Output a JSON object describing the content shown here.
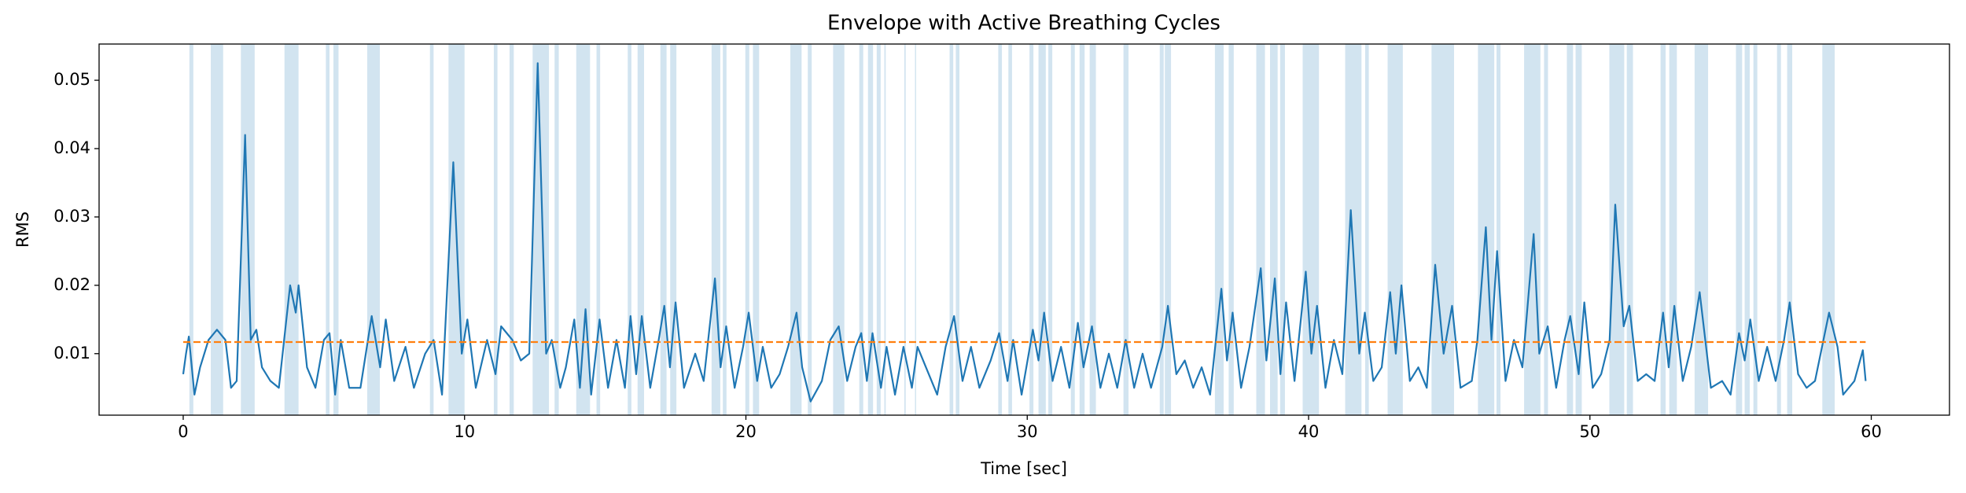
{
  "chart_data": {
    "type": "line",
    "title": "Envelope with Active Breathing Cycles",
    "x_label": "Time [sec]",
    "y_label": "RMS",
    "xlim": [
      -2.99,
      62.78
    ],
    "ylim": [
      0.001,
      0.0553
    ],
    "xticks": [
      0,
      10,
      20,
      30,
      40,
      50,
      60
    ],
    "yticks": [
      0.01,
      0.02,
      0.03,
      0.04,
      0.05
    ],
    "threshold": 0.0117,
    "threshold_color": "#ff7f0e",
    "span_color": "#1f77b4",
    "span_alpha": 0.2,
    "spans": [
      [
        0.22,
        0.36
      ],
      [
        0.98,
        1.42
      ],
      [
        2.05,
        2.54
      ],
      [
        3.6,
        4.1
      ],
      [
        5.07,
        5.2
      ],
      [
        5.34,
        5.52
      ],
      [
        6.54,
        6.99
      ],
      [
        8.77,
        8.9
      ],
      [
        9.43,
        10.0
      ],
      [
        11.04,
        11.17
      ],
      [
        11.6,
        11.75
      ],
      [
        12.42,
        13.0
      ],
      [
        13.2,
        13.35
      ],
      [
        13.97,
        14.46
      ],
      [
        14.69,
        14.82
      ],
      [
        15.8,
        15.93
      ],
      [
        16.15,
        16.38
      ],
      [
        16.96,
        17.18
      ],
      [
        17.31,
        17.53
      ],
      [
        18.78,
        19.09
      ],
      [
        19.18,
        19.31
      ],
      [
        19.98,
        20.12
      ],
      [
        20.25,
        20.47
      ],
      [
        21.58,
        21.98
      ],
      [
        22.2,
        22.34
      ],
      [
        23.1,
        23.5
      ],
      [
        24.03,
        24.17
      ],
      [
        24.34,
        24.52
      ],
      [
        24.65,
        24.79
      ],
      [
        24.92,
        24.97
      ],
      [
        25.63,
        25.68
      ],
      [
        26.01,
        26.05
      ],
      [
        27.24,
        27.37
      ],
      [
        27.46,
        27.59
      ],
      [
        28.97,
        29.1
      ],
      [
        29.33,
        29.46
      ],
      [
        30.08,
        30.22
      ],
      [
        30.4,
        30.66
      ],
      [
        30.75,
        30.89
      ],
      [
        31.55,
        31.69
      ],
      [
        31.86,
        32.04
      ],
      [
        32.22,
        32.44
      ],
      [
        33.42,
        33.6
      ],
      [
        34.71,
        34.85
      ],
      [
        34.89,
        35.11
      ],
      [
        36.67,
        36.98
      ],
      [
        37.16,
        37.34
      ],
      [
        38.14,
        38.45
      ],
      [
        38.63,
        38.9
      ],
      [
        38.99,
        39.16
      ],
      [
        39.79,
        40.37
      ],
      [
        41.3,
        41.88
      ],
      [
        42.01,
        42.14
      ],
      [
        42.81,
        43.35
      ],
      [
        44.37,
        45.17
      ],
      [
        46.02,
        46.6
      ],
      [
        46.68,
        46.82
      ],
      [
        47.66,
        48.24
      ],
      [
        48.37,
        48.51
      ],
      [
        49.18,
        49.4
      ],
      [
        49.49,
        49.71
      ],
      [
        50.69,
        51.22
      ],
      [
        51.31,
        51.53
      ],
      [
        52.51,
        52.69
      ],
      [
        52.82,
        53.09
      ],
      [
        53.72,
        54.2
      ],
      [
        55.19,
        55.41
      ],
      [
        55.5,
        55.68
      ],
      [
        55.81,
        55.95
      ],
      [
        56.65,
        56.79
      ],
      [
        57.01,
        57.19
      ],
      [
        58.26,
        58.7
      ]
    ],
    "x": [
      0.0,
      0.1,
      0.2,
      0.4,
      0.6,
      0.9,
      1.2,
      1.5,
      1.7,
      1.9,
      2.2,
      2.4,
      2.6,
      2.8,
      3.1,
      3.4,
      3.8,
      4.0,
      4.1,
      4.4,
      4.7,
      5.0,
      5.2,
      5.4,
      5.6,
      5.9,
      6.3,
      6.7,
      7.0,
      7.2,
      7.5,
      7.9,
      8.2,
      8.6,
      8.9,
      9.2,
      9.6,
      9.9,
      10.1,
      10.4,
      10.8,
      11.1,
      11.3,
      11.7,
      12.0,
      12.3,
      12.6,
      12.9,
      13.1,
      13.4,
      13.6,
      13.9,
      14.1,
      14.3,
      14.5,
      14.8,
      15.1,
      15.4,
      15.7,
      15.9,
      16.1,
      16.3,
      16.6,
      16.9,
      17.1,
      17.3,
      17.5,
      17.8,
      18.2,
      18.5,
      18.9,
      19.1,
      19.3,
      19.6,
      19.9,
      20.1,
      20.4,
      20.6,
      20.9,
      21.2,
      21.5,
      21.8,
      22.0,
      22.3,
      22.7,
      23.0,
      23.3,
      23.6,
      23.9,
      24.1,
      24.3,
      24.5,
      24.8,
      25.0,
      25.3,
      25.6,
      25.9,
      26.1,
      26.5,
      26.8,
      27.1,
      27.4,
      27.7,
      28.0,
      28.3,
      28.7,
      29.0,
      29.3,
      29.5,
      29.8,
      30.2,
      30.4,
      30.6,
      30.9,
      31.2,
      31.5,
      31.8,
      32.0,
      32.3,
      32.6,
      32.9,
      33.2,
      33.5,
      33.8,
      34.1,
      34.4,
      34.8,
      35.0,
      35.3,
      35.6,
      35.9,
      36.2,
      36.5,
      36.9,
      37.1,
      37.3,
      37.6,
      37.9,
      38.3,
      38.5,
      38.8,
      39.0,
      39.2,
      39.5,
      39.9,
      40.1,
      40.3,
      40.6,
      40.9,
      41.2,
      41.5,
      41.8,
      42.0,
      42.3,
      42.6,
      42.9,
      43.1,
      43.3,
      43.6,
      43.9,
      44.2,
      44.5,
      44.8,
      45.1,
      45.4,
      45.8,
      46.0,
      46.3,
      46.5,
      46.7,
      47.0,
      47.3,
      47.6,
      48.0,
      48.2,
      48.5,
      48.8,
      49.1,
      49.3,
      49.6,
      49.8,
      50.1,
      50.4,
      50.7,
      50.9,
      51.2,
      51.4,
      51.7,
      52.0,
      52.3,
      52.6,
      52.8,
      53.0,
      53.3,
      53.6,
      53.9,
      54.1,
      54.3,
      54.7,
      55.0,
      55.3,
      55.5,
      55.7,
      56.0,
      56.3,
      56.6,
      56.9,
      57.1,
      57.4,
      57.7,
      58.0,
      58.3,
      58.5,
      58.8,
      59.0,
      59.4,
      59.7,
      59.8
    ],
    "series": [
      {
        "color": "#1f77b4",
        "values": [
          0.007,
          0.01,
          0.0125,
          0.004,
          0.008,
          0.012,
          0.0135,
          0.012,
          0.005,
          0.006,
          0.042,
          0.012,
          0.0135,
          0.008,
          0.006,
          0.005,
          0.02,
          0.016,
          0.02,
          0.008,
          0.005,
          0.012,
          0.013,
          0.004,
          0.012,
          0.005,
          0.005,
          0.0155,
          0.008,
          0.015,
          0.006,
          0.011,
          0.005,
          0.01,
          0.012,
          0.004,
          0.038,
          0.01,
          0.015,
          0.005,
          0.012,
          0.007,
          0.014,
          0.012,
          0.009,
          0.01,
          0.0525,
          0.01,
          0.012,
          0.005,
          0.008,
          0.015,
          0.005,
          0.0165,
          0.004,
          0.015,
          0.005,
          0.012,
          0.005,
          0.0155,
          0.007,
          0.0155,
          0.005,
          0.012,
          0.017,
          0.008,
          0.0175,
          0.005,
          0.01,
          0.006,
          0.021,
          0.008,
          0.014,
          0.005,
          0.011,
          0.016,
          0.006,
          0.011,
          0.005,
          0.007,
          0.011,
          0.016,
          0.008,
          0.003,
          0.006,
          0.012,
          0.014,
          0.006,
          0.011,
          0.013,
          0.006,
          0.013,
          0.005,
          0.011,
          0.004,
          0.011,
          0.005,
          0.011,
          0.007,
          0.004,
          0.011,
          0.0155,
          0.006,
          0.011,
          0.005,
          0.009,
          0.013,
          0.006,
          0.012,
          0.004,
          0.0135,
          0.009,
          0.016,
          0.006,
          0.011,
          0.005,
          0.0145,
          0.008,
          0.014,
          0.005,
          0.01,
          0.005,
          0.012,
          0.005,
          0.01,
          0.005,
          0.011,
          0.017,
          0.007,
          0.009,
          0.005,
          0.008,
          0.004,
          0.0195,
          0.009,
          0.016,
          0.005,
          0.011,
          0.0225,
          0.009,
          0.021,
          0.007,
          0.0175,
          0.006,
          0.022,
          0.01,
          0.017,
          0.005,
          0.012,
          0.007,
          0.031,
          0.01,
          0.016,
          0.006,
          0.008,
          0.019,
          0.01,
          0.02,
          0.006,
          0.008,
          0.005,
          0.023,
          0.01,
          0.017,
          0.005,
          0.006,
          0.012,
          0.0285,
          0.012,
          0.025,
          0.006,
          0.012,
          0.008,
          0.0275,
          0.01,
          0.014,
          0.005,
          0.012,
          0.0155,
          0.007,
          0.0175,
          0.005,
          0.007,
          0.012,
          0.0318,
          0.014,
          0.017,
          0.006,
          0.007,
          0.006,
          0.016,
          0.008,
          0.017,
          0.006,
          0.011,
          0.019,
          0.012,
          0.005,
          0.006,
          0.004,
          0.013,
          0.009,
          0.015,
          0.006,
          0.011,
          0.006,
          0.012,
          0.0175,
          0.007,
          0.005,
          0.006,
          0.012,
          0.016,
          0.011,
          0.004,
          0.006,
          0.0105,
          0.006
        ]
      }
    ]
  }
}
